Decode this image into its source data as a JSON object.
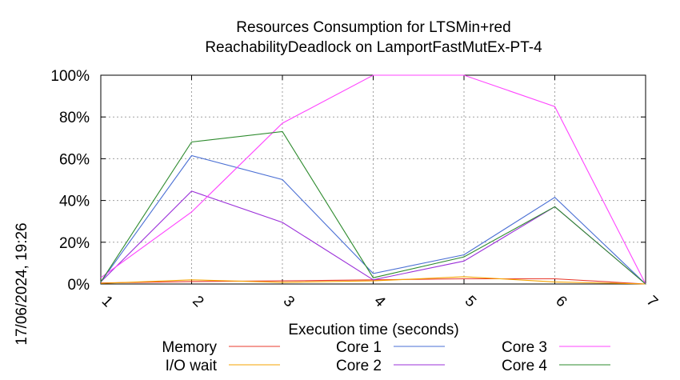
{
  "chart_data": {
    "type": "line",
    "title": "Resources Consumption for LTSMin+red",
    "subtitle": "ReachabilityDeadlock on LamportFastMutEx-PT-4",
    "xlabel": "Execution time (seconds)",
    "ylabel": "",
    "side_label": "17/06/2024, 19:26",
    "x": [
      1,
      2,
      3,
      4,
      5,
      6,
      7
    ],
    "x_ticks": [
      "1",
      "2",
      "3",
      "4",
      "5",
      "6",
      "7"
    ],
    "xlim": [
      1,
      7
    ],
    "ylim": [
      0,
      100
    ],
    "y_ticks": [
      "0%",
      "20%",
      "40%",
      "60%",
      "80%",
      "100%"
    ],
    "y_tick_values": [
      0,
      20,
      40,
      60,
      80,
      100
    ],
    "grid": true,
    "legend_position": "bottom",
    "series": [
      {
        "name": "Memory",
        "color": "#e8392c",
        "values": [
          0.5,
          1.2,
          1.5,
          2.0,
          2.5,
          2.5,
          0.0
        ]
      },
      {
        "name": "I/O wait",
        "color": "#f5a300",
        "values": [
          0.3,
          2.0,
          0.8,
          1.5,
          3.5,
          1.0,
          0.0
        ]
      },
      {
        "name": "Core 1",
        "color": "#4a6fd4",
        "values": [
          1.0,
          61.5,
          50.0,
          5.0,
          14.0,
          41.5,
          0.0
        ]
      },
      {
        "name": "Core 2",
        "color": "#9b30d9",
        "values": [
          1.0,
          44.5,
          29.5,
          2.0,
          11.0,
          37.0,
          0.0
        ]
      },
      {
        "name": "Core 3",
        "color": "#ff44ff",
        "values": [
          3.0,
          34.5,
          77.0,
          100.0,
          100.0,
          85.0,
          0.0
        ]
      },
      {
        "name": "Core 4",
        "color": "#2e8b2e",
        "values": [
          1.0,
          68.0,
          73.0,
          3.0,
          13.0,
          37.0,
          0.0
        ]
      }
    ]
  }
}
